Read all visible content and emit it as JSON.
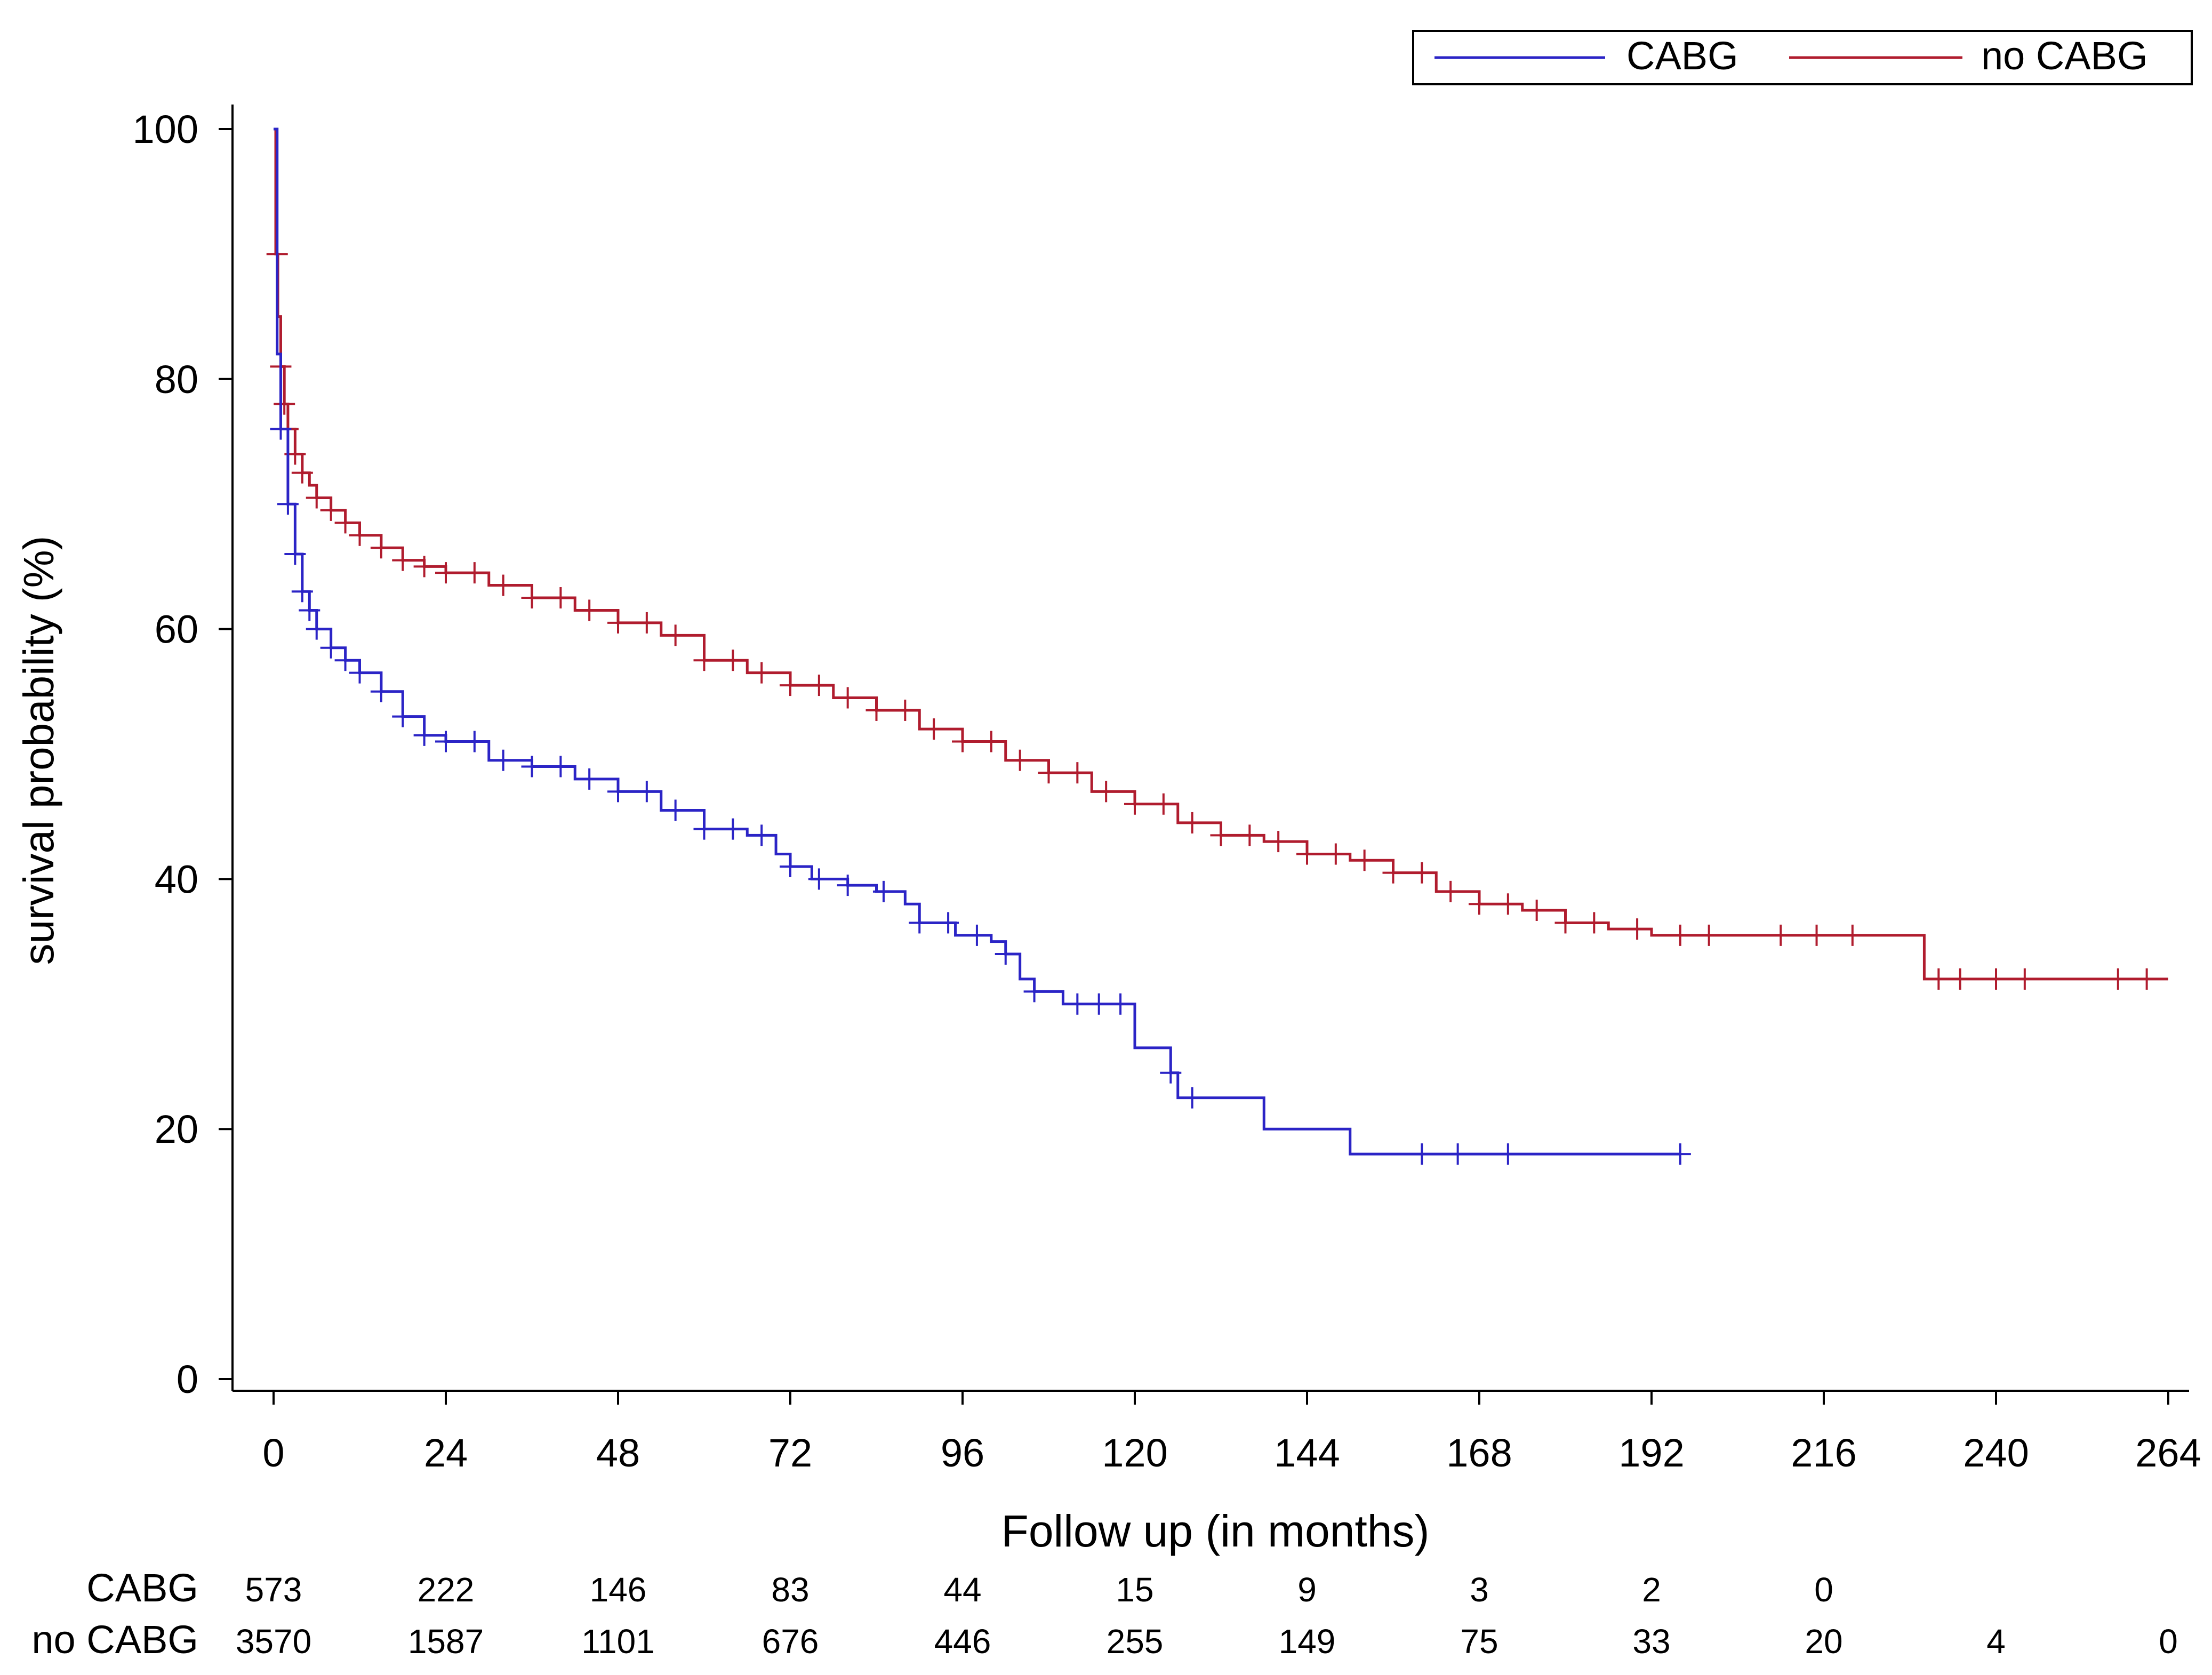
{
  "colors": {
    "cabg": "#2b24c6",
    "no_cabg": "#b01c2e",
    "axis": "#000000"
  },
  "legend": {
    "entries": [
      {
        "label": "CABG",
        "color": "#2b24c6"
      },
      {
        "label": "no CABG",
        "color": "#b01c2e"
      }
    ],
    "placement": "top-right"
  },
  "chart_data": {
    "type": "line",
    "subtype": "kaplan-meier step",
    "title": "",
    "xlabel": "Follow up (in months)",
    "ylabel": "survival probability (%)",
    "xlim": [
      0,
      264
    ],
    "ylim": [
      0,
      100
    ],
    "xticks": [
      "0",
      "24",
      "48",
      "72",
      "96",
      "120",
      "144",
      "168",
      "192",
      "216",
      "240",
      "264"
    ],
    "yticks": [
      "0",
      "20",
      "40",
      "60",
      "80",
      "100"
    ],
    "grid": false,
    "series": [
      {
        "name": "CABG",
        "x": [
          0,
          0.5,
          1,
          2,
          3,
          4,
          5,
          6,
          8,
          10,
          12,
          15,
          18,
          21,
          24,
          30,
          36,
          42,
          48,
          54,
          60,
          66,
          70,
          72,
          75,
          80,
          84,
          88,
          90,
          95,
          100,
          102,
          104,
          106,
          110,
          115,
          120,
          120,
          125,
          126,
          135,
          138,
          150,
          196
        ],
        "y": [
          100,
          82,
          76,
          70,
          66,
          63,
          61.5,
          60,
          58.5,
          57.5,
          56.5,
          55,
          53,
          51.5,
          51,
          49.5,
          49,
          48,
          47,
          45.5,
          44,
          43.5,
          42,
          41,
          40,
          39.5,
          39,
          38,
          36.5,
          35.5,
          35,
          34,
          32,
          31,
          30,
          30,
          30,
          26.5,
          24.5,
          22.5,
          22.5,
          20,
          18,
          18
        ],
        "censor_x": [
          1,
          2,
          3,
          4,
          5,
          6,
          8,
          10,
          12,
          15,
          18,
          21,
          24,
          28,
          32,
          36,
          40,
          44,
          48,
          52,
          56,
          60,
          64,
          68,
          72,
          76,
          80,
          85,
          90,
          94,
          98,
          102,
          106,
          112,
          115,
          118,
          125,
          128,
          160,
          165,
          172,
          196
        ]
      },
      {
        "name": "no CABG",
        "x": [
          0,
          0.3,
          0.6,
          1,
          1.5,
          2,
          3,
          4,
          5,
          6,
          8,
          10,
          12,
          15,
          18,
          21,
          24,
          30,
          36,
          42,
          48,
          54,
          60,
          66,
          72,
          78,
          84,
          90,
          96,
          102,
          108,
          114,
          120,
          126,
          132,
          138,
          144,
          150,
          156,
          162,
          168,
          174,
          180,
          186,
          192,
          200,
          210,
          220,
          229,
          230,
          240,
          264
        ],
        "y": [
          100,
          90,
          85,
          81,
          78,
          76,
          74,
          72.5,
          71.5,
          70.5,
          69.5,
          68.5,
          67.5,
          66.5,
          65.5,
          65,
          64.5,
          63.5,
          62.5,
          61.5,
          60.5,
          59.5,
          57.5,
          56.5,
          55.5,
          54.5,
          53.5,
          52,
          51,
          49.5,
          48.5,
          47,
          46,
          44.5,
          43.5,
          43,
          42,
          41.5,
          40.5,
          39,
          38,
          37.5,
          36.5,
          36,
          35.5,
          35.5,
          35.5,
          35.5,
          35.5,
          32,
          32,
          32
        ],
        "censor_x": [
          0.5,
          1,
          1.5,
          2,
          3,
          4,
          6,
          8,
          10,
          12,
          15,
          18,
          21,
          24,
          28,
          32,
          36,
          40,
          44,
          48,
          52,
          56,
          60,
          64,
          68,
          72,
          76,
          80,
          84,
          88,
          92,
          96,
          100,
          104,
          108,
          112,
          116,
          120,
          124,
          128,
          132,
          136,
          140,
          144,
          148,
          152,
          156,
          160,
          164,
          168,
          172,
          176,
          180,
          184,
          190,
          196,
          200,
          210,
          215,
          220,
          232,
          235,
          240,
          244,
          257,
          261
        ]
      }
    ],
    "risk_table": {
      "time_points": [
        "0",
        "24",
        "48",
        "72",
        "96",
        "120",
        "144",
        "168",
        "192",
        "216",
        "240",
        "264"
      ],
      "rows": [
        {
          "label": "CABG",
          "values": [
            "573",
            "222",
            "146",
            "83",
            "44",
            "15",
            "9",
            "3",
            "2",
            "0",
            "",
            ""
          ]
        },
        {
          "label": "no CABG",
          "values": [
            "3570",
            "1587",
            "1101",
            "676",
            "446",
            "255",
            "149",
            "75",
            "33",
            "20",
            "4",
            "0"
          ]
        }
      ]
    }
  }
}
